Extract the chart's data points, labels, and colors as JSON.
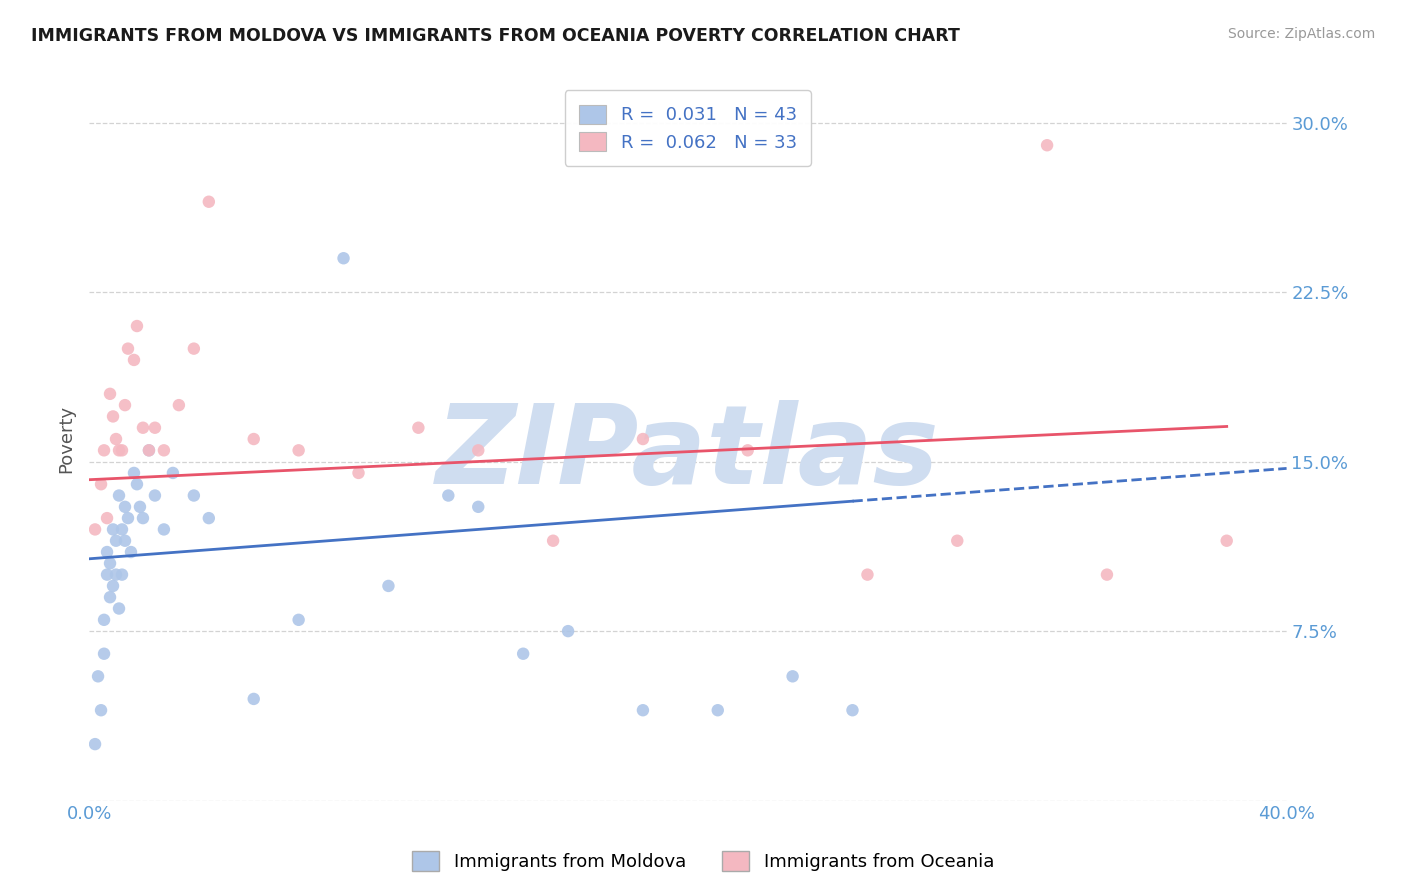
{
  "title": "IMMIGRANTS FROM MOLDOVA VS IMMIGRANTS FROM OCEANIA POVERTY CORRELATION CHART",
  "source": "Source: ZipAtlas.com",
  "ylabel": "Poverty",
  "xlim": [
    0.0,
    0.4
  ],
  "ylim": [
    0.0,
    0.32
  ],
  "yticks": [
    0.0,
    0.075,
    0.15,
    0.225,
    0.3
  ],
  "ytick_labels": [
    "",
    "7.5%",
    "15.0%",
    "22.5%",
    "30.0%"
  ],
  "xticks": [
    0.0,
    0.1,
    0.2,
    0.3,
    0.4
  ],
  "xtick_labels": [
    "0.0%",
    "",
    "",
    "",
    "40.0%"
  ],
  "moldova_R": 0.031,
  "moldova_N": 43,
  "oceania_R": 0.062,
  "oceania_N": 33,
  "moldova_color": "#aec6e8",
  "oceania_color": "#f4b8c1",
  "moldova_line_color": "#4472c4",
  "oceania_line_color": "#e8546a",
  "background_color": "#ffffff",
  "grid_color": "#c8c8c8",
  "watermark": "ZIPatlas",
  "watermark_color": "#cfddf0",
  "moldova_x": [
    0.002,
    0.003,
    0.004,
    0.005,
    0.005,
    0.006,
    0.006,
    0.007,
    0.007,
    0.008,
    0.008,
    0.009,
    0.009,
    0.01,
    0.01,
    0.011,
    0.011,
    0.012,
    0.012,
    0.013,
    0.014,
    0.015,
    0.016,
    0.017,
    0.018,
    0.02,
    0.022,
    0.025,
    0.028,
    0.035,
    0.04,
    0.055,
    0.07,
    0.085,
    0.1,
    0.12,
    0.13,
    0.145,
    0.16,
    0.185,
    0.21,
    0.235,
    0.255
  ],
  "moldova_y": [
    0.025,
    0.055,
    0.04,
    0.065,
    0.08,
    0.1,
    0.11,
    0.09,
    0.105,
    0.12,
    0.095,
    0.1,
    0.115,
    0.085,
    0.135,
    0.12,
    0.1,
    0.13,
    0.115,
    0.125,
    0.11,
    0.145,
    0.14,
    0.13,
    0.125,
    0.155,
    0.135,
    0.12,
    0.145,
    0.135,
    0.125,
    0.045,
    0.08,
    0.24,
    0.095,
    0.135,
    0.13,
    0.065,
    0.075,
    0.04,
    0.04,
    0.055,
    0.04
  ],
  "oceania_x": [
    0.002,
    0.004,
    0.005,
    0.006,
    0.007,
    0.008,
    0.009,
    0.01,
    0.011,
    0.012,
    0.013,
    0.015,
    0.016,
    0.018,
    0.02,
    0.022,
    0.025,
    0.03,
    0.035,
    0.04,
    0.055,
    0.07,
    0.09,
    0.11,
    0.13,
    0.155,
    0.185,
    0.22,
    0.26,
    0.29,
    0.32,
    0.34,
    0.38
  ],
  "oceania_y": [
    0.12,
    0.14,
    0.155,
    0.125,
    0.18,
    0.17,
    0.16,
    0.155,
    0.155,
    0.175,
    0.2,
    0.195,
    0.21,
    0.165,
    0.155,
    0.165,
    0.155,
    0.175,
    0.2,
    0.265,
    0.16,
    0.155,
    0.145,
    0.165,
    0.155,
    0.115,
    0.16,
    0.155,
    0.1,
    0.115,
    0.29,
    0.1,
    0.115
  ]
}
